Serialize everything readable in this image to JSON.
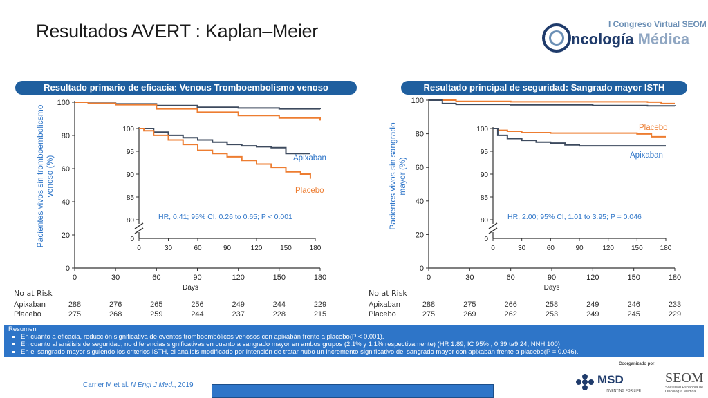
{
  "slide": {
    "title": "Resultados AVERT : Kaplan–Meier",
    "logo_top": "I Congreso Virtual SEOM",
    "logo_word1": "ncología",
    "logo_word2": "Médica",
    "citation_prefix": "Carrier M et al. ",
    "citation_journal": "N Engl J Med.",
    "citation_suffix": ", 2019",
    "coorganized": "Coorganizado por:",
    "msd_name": "MSD",
    "msd_tagline": "INVENTING FOR LIFE",
    "seom_name": "SEOM",
    "seom_sub": "Sociedad Española de Oncología Médica"
  },
  "summary": {
    "title": "Resumen",
    "bullets": [
      "En cuanto a eficacia, reducción significativa de eventos tromboembólicos venosos con apixabán frente a placebo(P < 0.001).",
      "En cuanto al análisis de seguridad, no diferencias significativas en cuanto a sangrado mayor en ambos grupos (2.1% y 1.1% respectivamente) (HR 1.89; IC 95% , 0.39 ta9.24; NNH 100)",
      "En el sangrado mayor siguiendo los criterios ISTH, el análisis modificado por intención de tratar hubo un incremento significativo del sangrado mayor con apixabán frente a placebo(P = 0.046)."
    ]
  },
  "colors": {
    "apixaban": "#3d4a5e",
    "placebo": "#ed7d31",
    "axis": "#333333",
    "accent": "#1f5f9f",
    "label_blue": "#2e75c8"
  },
  "chart_data": [
    {
      "type": "line",
      "title": "Resultado primario de eficacia: Venous Tromboembolismo venoso",
      "ylabel": "Pacientes vivos sin tromboembolicsmo venoso (%)",
      "xlabel": "Days",
      "xlim": [
        0,
        180
      ],
      "ylim": [
        0,
        100
      ],
      "xticks": [
        0,
        30,
        60,
        90,
        120,
        150,
        180
      ],
      "yticks": [
        0,
        20,
        40,
        60,
        80,
        100
      ],
      "series": [
        {
          "name": "Apixaban",
          "x": [
            0,
            10,
            30,
            60,
            90,
            120,
            150,
            180
          ],
          "y": [
            100,
            99.5,
            99,
            98,
            97,
            96.5,
            96,
            95.8
          ]
        },
        {
          "name": "Placebo",
          "x": [
            0,
            10,
            30,
            60,
            90,
            120,
            150,
            180
          ],
          "y": [
            100,
            99.3,
            98.5,
            96,
            94,
            92,
            90.5,
            89
          ]
        }
      ],
      "inset": {
        "xticks": [
          0,
          30,
          60,
          90,
          120,
          150,
          180
        ],
        "yticks": [
          80,
          85,
          90,
          95,
          100
        ],
        "y_break_zero": "0",
        "annotation": "HR, 0.41; 95% CI, 0.26 to 0.65; P < 0.001",
        "series": [
          {
            "name": "Apixaban",
            "x": [
              0,
              5,
              15,
              30,
              45,
              60,
              75,
              90,
              105,
              120,
              135,
              150,
              165,
              175
            ],
            "y": [
              100,
              100,
              99.2,
              98.5,
              98,
              97.5,
              97,
              96.5,
              96.2,
              96,
              95.8,
              94.5,
              94.5,
              94.5
            ]
          },
          {
            "name": "Placebo",
            "x": [
              0,
              5,
              15,
              30,
              45,
              60,
              75,
              90,
              105,
              120,
              135,
              150,
              165,
              175
            ],
            "y": [
              100,
              99.5,
              98.5,
              97.5,
              96.5,
              95.2,
              94.5,
              93.8,
              93,
              92.2,
              91.5,
              90.5,
              90,
              89
            ]
          }
        ]
      },
      "legend": [
        "Apixaban",
        "Placebo"
      ],
      "risk_table": {
        "header": "No at Risk",
        "rows": [
          {
            "label": "Apixaban",
            "values": [
              288,
              276,
              265,
              256,
              249,
              244,
              229
            ]
          },
          {
            "label": "Placebo",
            "values": [
              275,
              268,
              259,
              244,
              237,
              228,
              215
            ]
          }
        ]
      }
    },
    {
      "type": "line",
      "title": "Resultado principal de seguridad: Sangrado mayor ISTH",
      "ylabel": "Pacientes vivos sin sangrado mayor (%)",
      "xlabel": "Days",
      "xlim": [
        0,
        180
      ],
      "ylim": [
        0,
        100
      ],
      "xticks": [
        0,
        30,
        60,
        90,
        120,
        150,
        180
      ],
      "yticks": [
        0,
        20,
        40,
        60,
        80,
        100
      ],
      "series": [
        {
          "name": "Placebo",
          "x": [
            0,
            20,
            60,
            120,
            160,
            170,
            180
          ],
          "y": [
            100,
            99.3,
            99,
            99,
            98.8,
            98,
            98
          ]
        },
        {
          "name": "Apixaban",
          "x": [
            0,
            10,
            20,
            60,
            120,
            160,
            180
          ],
          "y": [
            100,
            98,
            97.5,
            97.2,
            96.8,
            96.6,
            96.5
          ]
        }
      ],
      "inset": {
        "xticks": [
          0,
          30,
          60,
          90,
          120,
          150,
          180
        ],
        "yticks": [
          80,
          85,
          90,
          95,
          100
        ],
        "y_break_zero": "0",
        "annotation": "HR, 2.00; 95% CI, 1.01 to 3.95; P = 0.046",
        "series": [
          {
            "name": "Placebo",
            "x": [
              0,
              5,
              15,
              30,
              60,
              90,
              120,
              150,
              165,
              180
            ],
            "y": [
              100,
              99.6,
              99.4,
              99.1,
              99,
              99,
              99,
              98.8,
              98.2,
              98.2
            ]
          },
          {
            "name": "Apixaban",
            "x": [
              0,
              5,
              15,
              30,
              45,
              60,
              75,
              90,
              120,
              150,
              180
            ],
            "y": [
              100,
              98.5,
              97.8,
              97.4,
              97,
              96.8,
              96.4,
              96.2,
              96.2,
              96.2,
              96.2
            ]
          }
        ]
      },
      "legend": [
        "Placebo",
        "Apixaban"
      ],
      "risk_table": {
        "header": "No at Risk",
        "rows": [
          {
            "label": "Apixaban",
            "values": [
              288,
              275,
              266,
              258,
              249,
              246,
              233
            ]
          },
          {
            "label": "Placebo",
            "values": [
              275,
              269,
              262,
              253,
              249,
              245,
              229
            ]
          }
        ]
      }
    }
  ]
}
